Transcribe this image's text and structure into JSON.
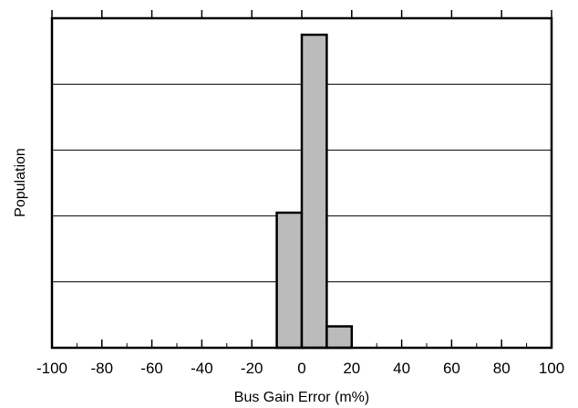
{
  "chart_data": {
    "type": "bar",
    "title": "",
    "xlabel": "Bus Gain Error (m%)",
    "ylabel": "Population",
    "xlim": [
      -100,
      100
    ],
    "xticks": [
      -100,
      -80,
      -60,
      -40,
      -20,
      0,
      20,
      40,
      60,
      80,
      100
    ],
    "ylim": [
      0,
      100
    ],
    "grid": {
      "horizontal": true,
      "vertical": false
    },
    "bins": [
      {
        "x0": -10,
        "x1": 0,
        "value": 41
      },
      {
        "x0": 0,
        "x1": 10,
        "value": 95
      },
      {
        "x0": 10,
        "x1": 20,
        "value": 6.5
      }
    ],
    "colors": {
      "bar_fill": "#bbbbbb",
      "bar_stroke": "#000000",
      "grid": "#000000"
    }
  }
}
